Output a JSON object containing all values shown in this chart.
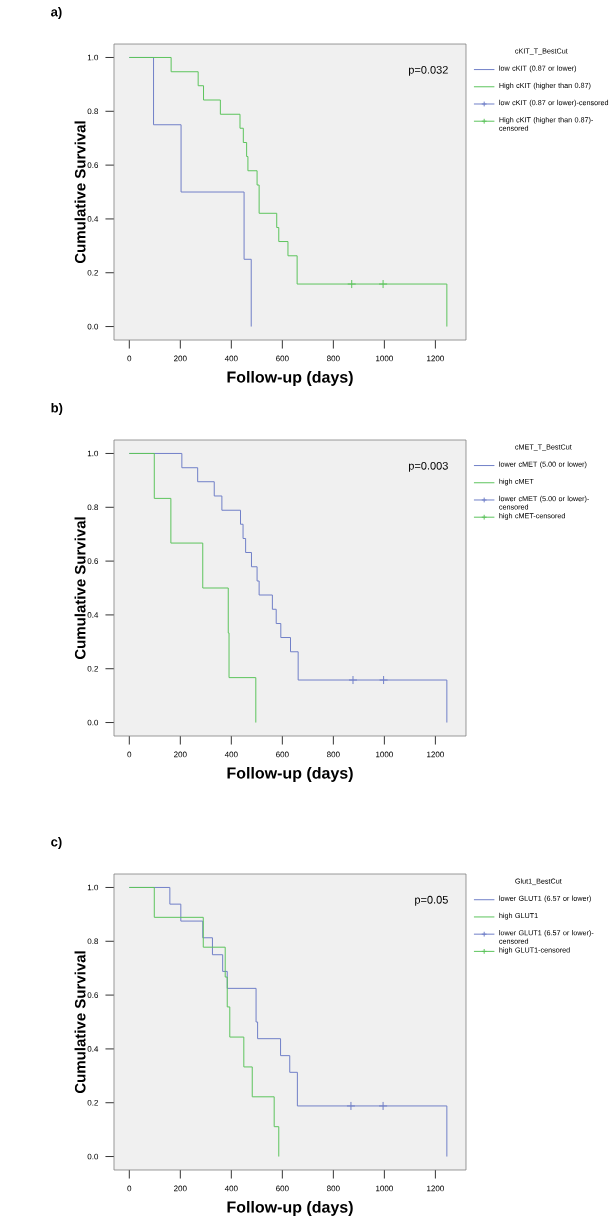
{
  "chart_data": [
    {
      "type": "step",
      "title": "a)",
      "xlabel": "Follow-up (days)",
      "ylabel": "Cumulative Survival",
      "legend_title": "cKIT_T_BestCut",
      "legend": "right",
      "annotations": [
        "p=0.032"
      ],
      "xlim": [
        -60,
        1320
      ],
      "ylim": [
        -0.05,
        1.05
      ],
      "xticks": [
        0,
        200,
        400,
        600,
        800,
        1000,
        1200
      ],
      "yticks": [
        {
          "value": 0,
          "label": "0.0"
        },
        {
          "value": 0.2,
          "label": "0.2"
        },
        {
          "value": 0.4,
          "label": "0.4"
        },
        {
          "value": 0.6,
          "label": "0.6"
        },
        {
          "value": 0.8,
          "label": "0.8"
        },
        {
          "value": 1,
          "label": "1.0"
        }
      ],
      "series": [
        {
          "name": "low cKIT (0.87 or lower)",
          "color": "#7080c8",
          "x": [
            0,
            95,
            203,
            450,
            478
          ],
          "values": [
            1,
            0.75,
            0.5,
            0.25,
            0
          ]
        },
        {
          "name": "High cKIT (higher than 0.87)",
          "color": "#5cc45c",
          "x": [
            0,
            164,
            270,
            291,
            357,
            434,
            447,
            460,
            465,
            501,
            509,
            578,
            586,
            622,
            658,
            1245
          ],
          "values": [
            1,
            0.947,
            0.895,
            0.842,
            0.789,
            0.737,
            0.684,
            0.632,
            0.579,
            0.526,
            0.421,
            0.368,
            0.316,
            0.263,
            0.158,
            0
          ]
        },
        {
          "name": "low cKIT (0.87 or lower)-censored",
          "type": "scatter",
          "marker": "cross",
          "color": "#7080c8"
        },
        {
          "name": "High cKIT (higher than 0.87)-censored",
          "type": "scatter",
          "marker": "cross",
          "color": "#5cc45c",
          "x": [
            872,
            995
          ],
          "values": [
            0.158,
            0.158
          ]
        }
      ]
    },
    {
      "type": "step",
      "title": "b)",
      "xlabel": "Follow-up (days)",
      "ylabel": "Cumulative Survival",
      "legend_title": "cMET_T_BestCut",
      "legend": "right",
      "annotations": [
        "p=0.003"
      ],
      "xlim": [
        -60,
        1320
      ],
      "ylim": [
        -0.05,
        1.05
      ],
      "xticks": [
        0,
        200,
        400,
        600,
        800,
        1000,
        1200
      ],
      "yticks": [
        {
          "value": 0,
          "label": "0.0"
        },
        {
          "value": 0.2,
          "label": "0.2"
        },
        {
          "value": 0.4,
          "label": "0.4"
        },
        {
          "value": 0.6,
          "label": "0.6"
        },
        {
          "value": 0.8,
          "label": "0.8"
        },
        {
          "value": 1,
          "label": "1.0"
        }
      ],
      "series": [
        {
          "name": "lower cMET (5.00 or lower)",
          "color": "#7080c8",
          "x": [
            0,
            206,
            268,
            333,
            363,
            436,
            446,
            456,
            479,
            501,
            509,
            561,
            576,
            594,
            632,
            662,
            1245
          ],
          "values": [
            1,
            0.947,
            0.895,
            0.842,
            0.789,
            0.737,
            0.684,
            0.632,
            0.579,
            0.526,
            0.474,
            0.421,
            0.368,
            0.316,
            0.263,
            0.158,
            0
          ]
        },
        {
          "name": "high cMET",
          "color": "#5cc45c",
          "x": [
            0,
            98,
            163,
            288,
            388,
            391,
            496
          ],
          "values": [
            1,
            0.833,
            0.667,
            0.5,
            0.333,
            0.167,
            0
          ]
        },
        {
          "name": "lower cMET (5.00 or lower)-censored",
          "type": "scatter",
          "marker": "cross",
          "color": "#7080c8",
          "x": [
            877,
            997
          ],
          "values": [
            0.158,
            0.158
          ]
        },
        {
          "name": "high cMET-censored",
          "type": "scatter",
          "marker": "cross",
          "color": "#5cc45c"
        }
      ]
    },
    {
      "type": "step",
      "title": "c)",
      "xlabel": "Follow-up (days)",
      "ylabel": "Cumulative Survival",
      "legend_title": "Glut1_BestCut",
      "legend": "right",
      "annotations": [
        "p=0.05"
      ],
      "xlim": [
        -60,
        1320
      ],
      "ylim": [
        -0.05,
        1.05
      ],
      "xticks": [
        0,
        200,
        400,
        600,
        800,
        1000,
        1200
      ],
      "yticks": [
        {
          "value": 0,
          "label": "0.0"
        },
        {
          "value": 0.2,
          "label": "0.2"
        },
        {
          "value": 0.4,
          "label": "0.4"
        },
        {
          "value": 0.6,
          "label": "0.6"
        },
        {
          "value": 0.8,
          "label": "0.8"
        },
        {
          "value": 1,
          "label": "1.0"
        }
      ],
      "series": [
        {
          "name": "lower GLUT1 (6.57 or lower)",
          "color": "#7080c8",
          "x": [
            0,
            159,
            202,
            288,
            326,
            366,
            384,
            497,
            503,
            593,
            629,
            659,
            1245
          ],
          "values": [
            1,
            0.938,
            0.875,
            0.813,
            0.75,
            0.688,
            0.625,
            0.5,
            0.438,
            0.375,
            0.313,
            0.188,
            0
          ]
        },
        {
          "name": "high GLUT1",
          "color": "#5cc45c",
          "x": [
            0,
            98,
            290,
            376,
            384,
            394,
            449,
            482,
            568,
            586
          ],
          "values": [
            1,
            0.889,
            0.778,
            0.667,
            0.556,
            0.444,
            0.333,
            0.222,
            0.111,
            0
          ]
        },
        {
          "name": "lower GLUT1 (6.57 or lower)-censored",
          "type": "scatter",
          "marker": "cross",
          "color": "#7080c8",
          "x": [
            869,
            995
          ],
          "values": [
            0.188,
            0.188
          ]
        },
        {
          "name": "high GLUT1-censored",
          "type": "scatter",
          "marker": "cross",
          "color": "#5cc45c"
        }
      ]
    }
  ]
}
